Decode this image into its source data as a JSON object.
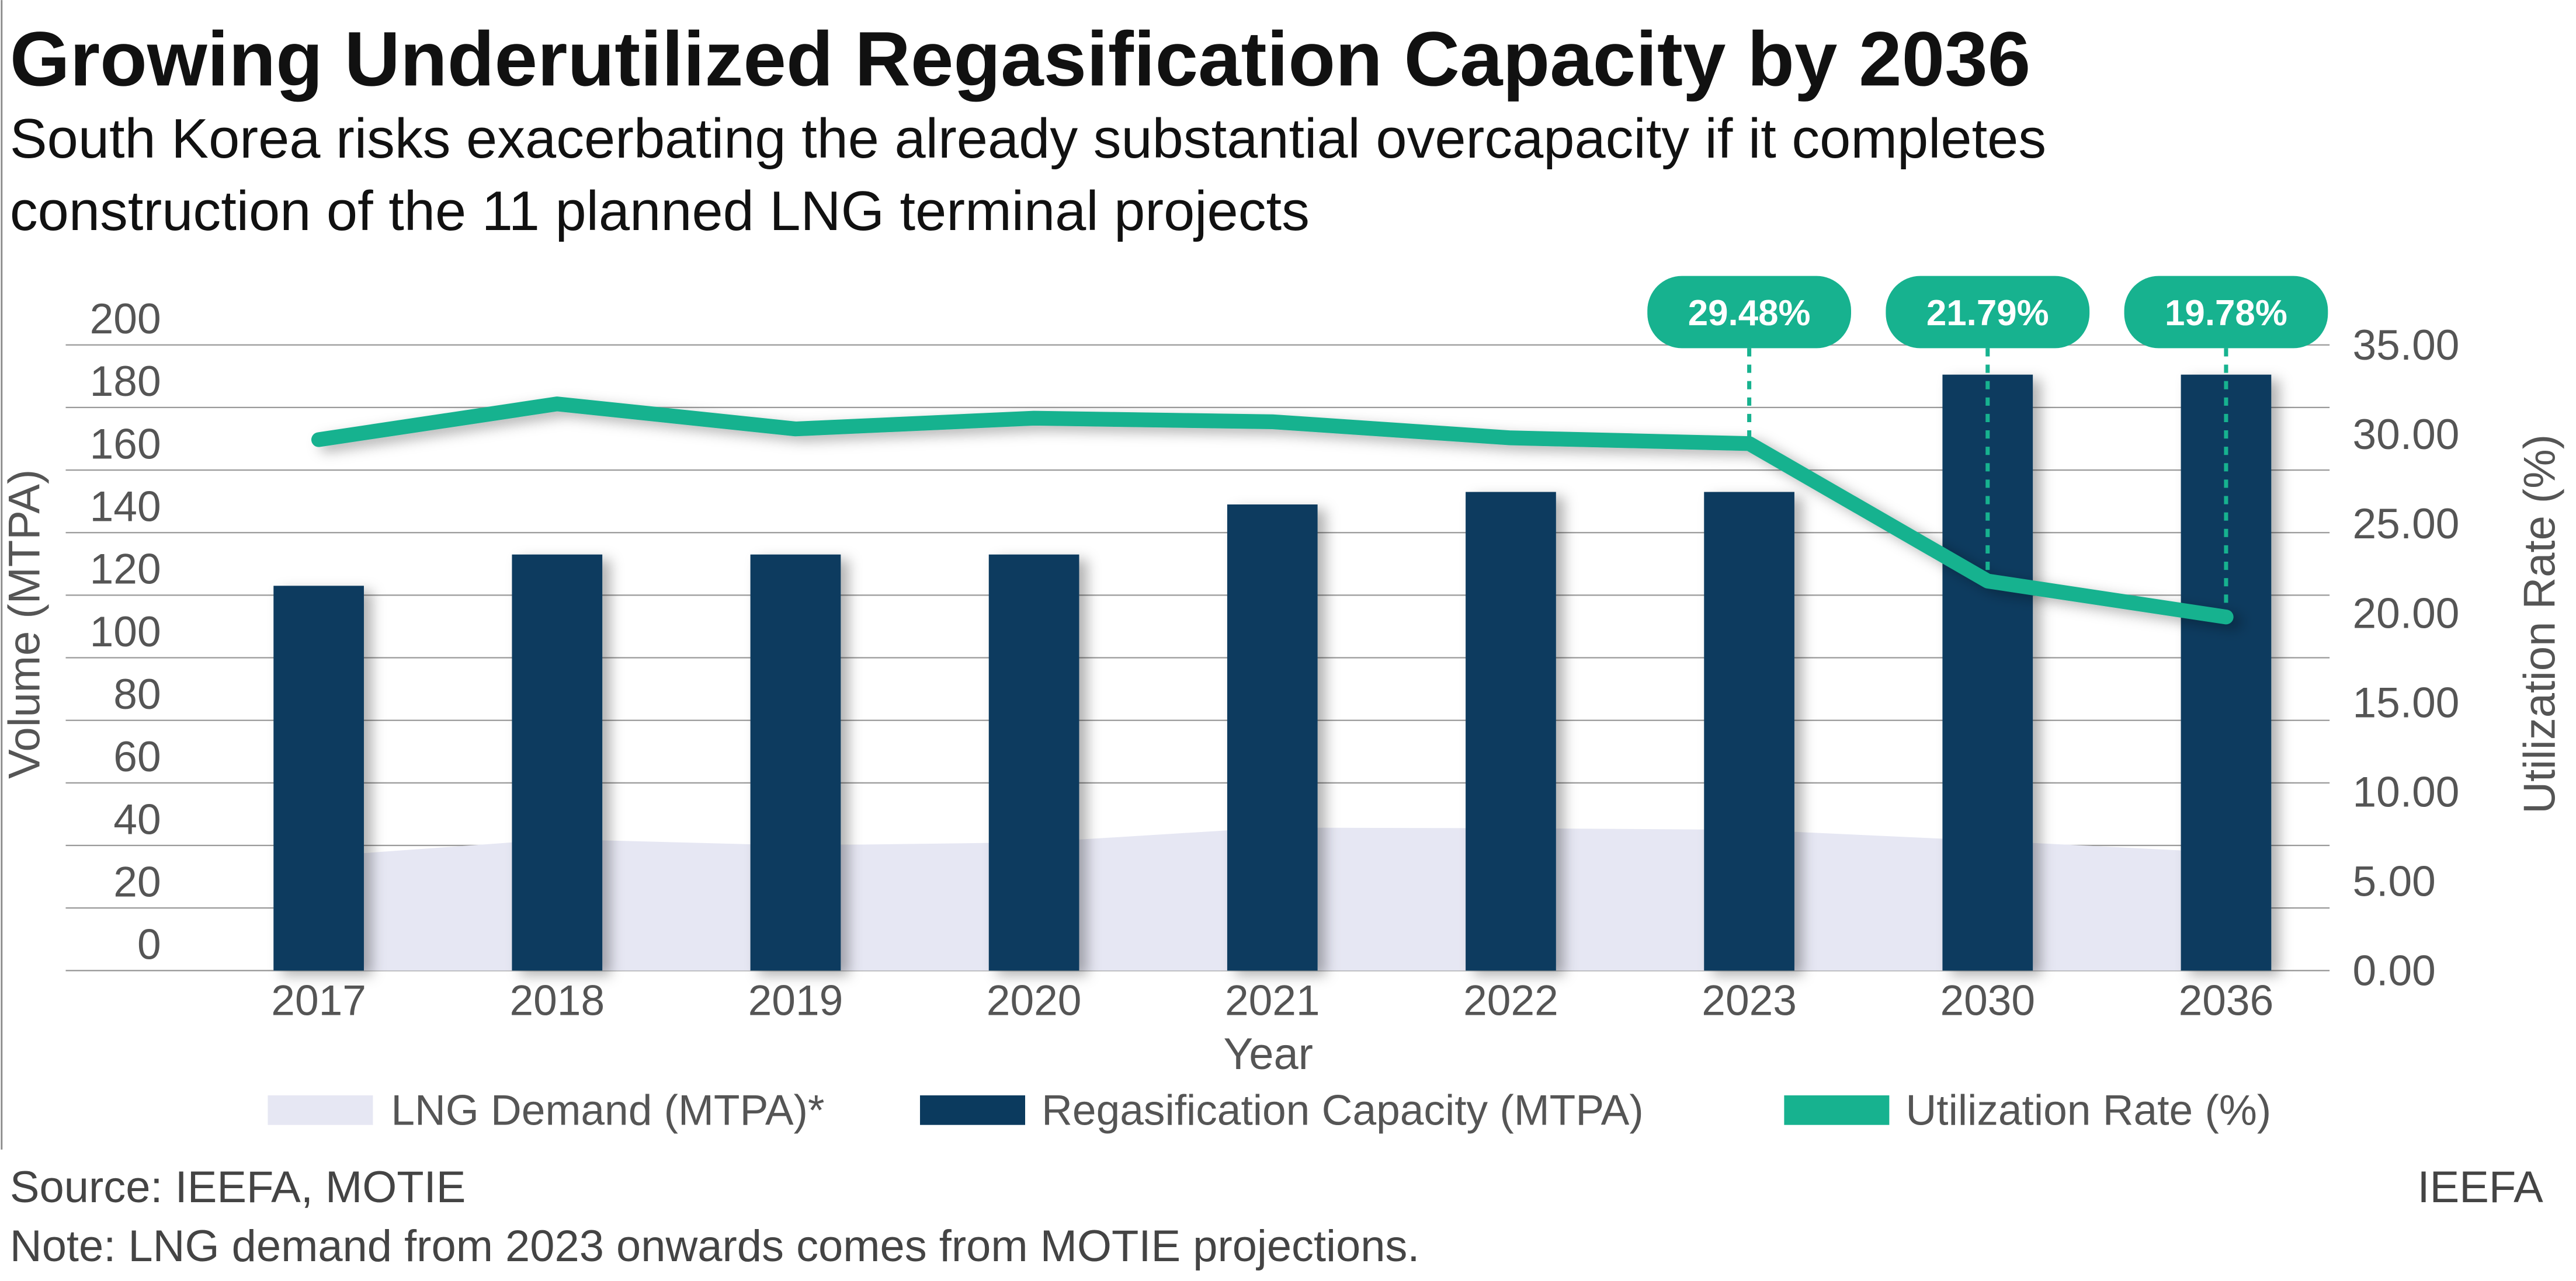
{
  "title": "Growing Underutilized Regasification Capacity by 2036",
  "subtitle_lines": [
    "South Korea risks exacerbating the already substantial overcapacity if it completes",
    "construction of the 11 planned LNG terminal projects"
  ],
  "footer": {
    "source": "Source: IEEFA, MOTIE",
    "note": "Note: LNG demand from 2023 onwards comes from MOTIE projections.",
    "brand": "IEEFA"
  },
  "colors": {
    "demand": "#e6e7f3",
    "capacity": "#0b3a5e",
    "utilization": "#17b28f",
    "grid": "#9a9a9a",
    "text": "#555555"
  },
  "chart_data": {
    "type": "bar",
    "title": "Growing Underutilized Regasification Capacity by 2036",
    "xlabel": "Year",
    "ylabel": "Volume (MTPA)",
    "y2label": "Utilization Rate (%)",
    "categories": [
      "2017",
      "2018",
      "2019",
      "2020",
      "2021",
      "2022",
      "2023",
      "2030",
      "2036"
    ],
    "ylim": [
      0,
      200
    ],
    "yticks": [
      "0",
      "20",
      "40",
      "60",
      "80",
      "100",
      "120",
      "140",
      "160",
      "180",
      "200"
    ],
    "y2lim": [
      0,
      35
    ],
    "y2ticks": [
      "0.00",
      "5.00",
      "10.00",
      "15.00",
      "20.00",
      "25.00",
      "30.00",
      "35.00"
    ],
    "grid": true,
    "legend_position": "bottom",
    "series": [
      {
        "name": "LNG Demand (MTPA)*",
        "type": "area",
        "axis": "left",
        "values": [
          36.5,
          42,
          40,
          41,
          45.7,
          45.5,
          45,
          41.5,
          37.7
        ]
      },
      {
        "name": "Regasification Capacity (MTPA)",
        "type": "bar",
        "axis": "left",
        "values": [
          123,
          133,
          133,
          133,
          149,
          153,
          153,
          190.5,
          190.5
        ]
      },
      {
        "name": "Utilization Rate (%)",
        "type": "line",
        "axis": "right",
        "values": [
          29.7,
          31.7,
          30.3,
          30.9,
          30.7,
          29.8,
          29.48,
          21.79,
          19.78
        ]
      }
    ],
    "annotations": [
      {
        "category": "2023",
        "label": "29.48%"
      },
      {
        "category": "2030",
        "label": "21.79%"
      },
      {
        "category": "2036",
        "label": "19.78%"
      }
    ]
  }
}
